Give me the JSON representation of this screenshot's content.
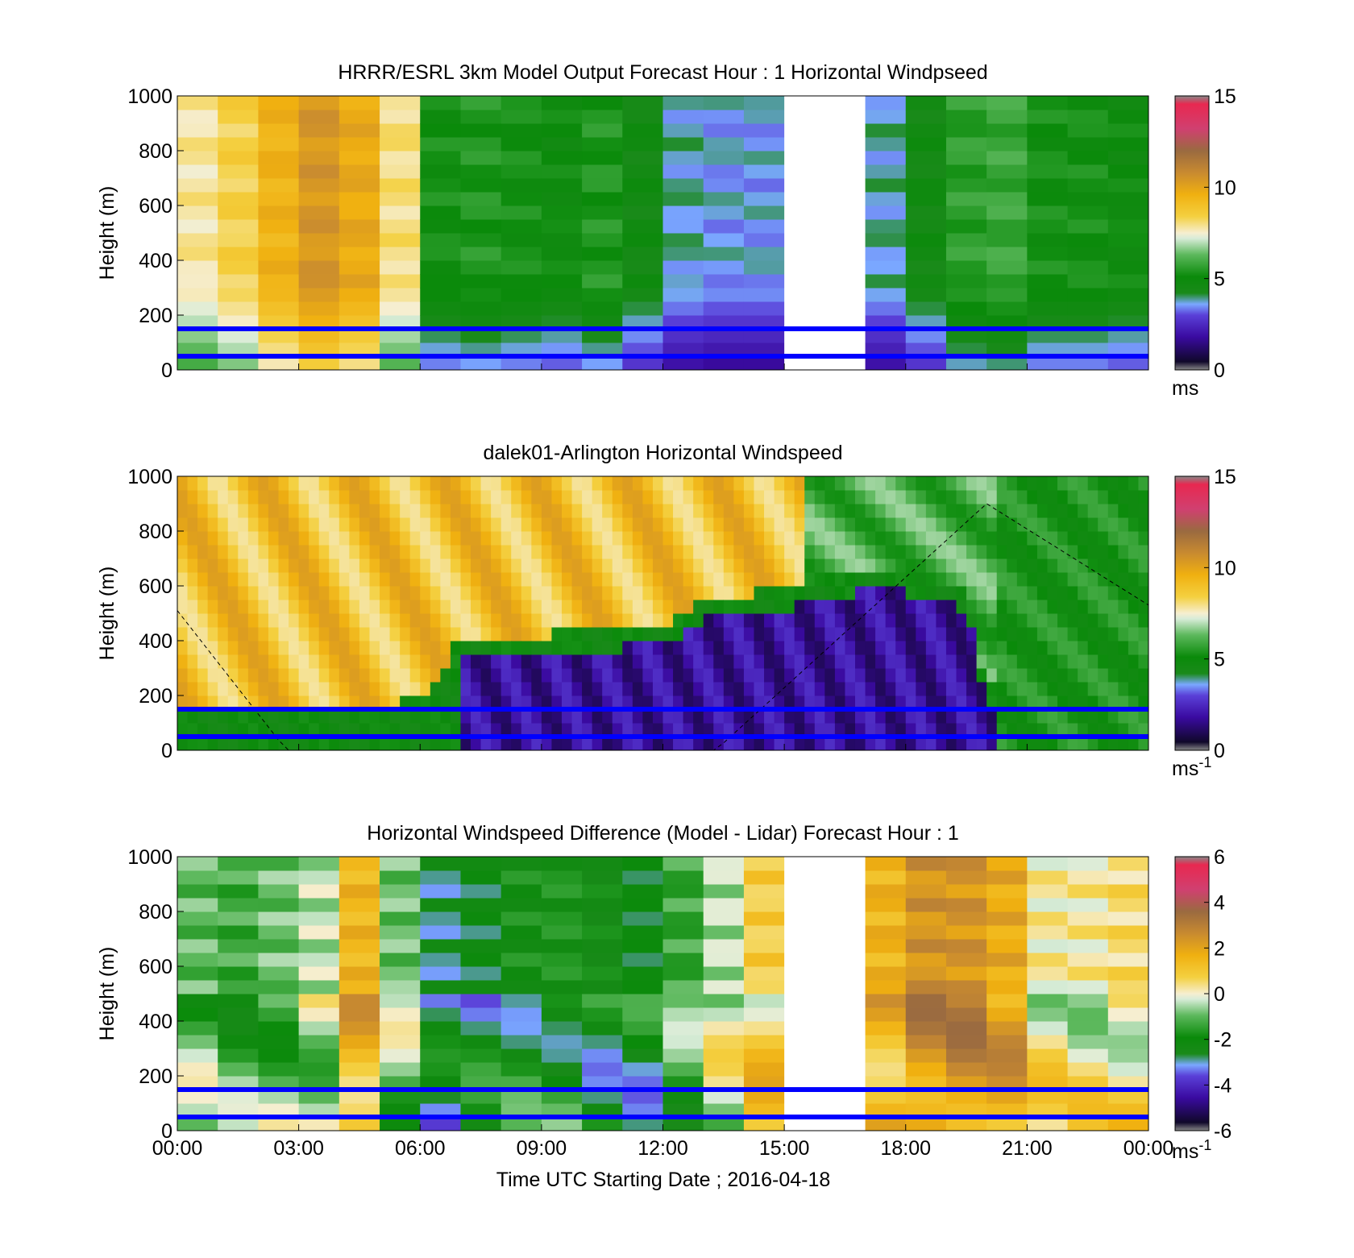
{
  "figure": {
    "xlabel": "Time UTC  Starting Date ; 2016-04-18",
    "time_ticks": [
      "00:00",
      "03:00",
      "06:00",
      "09:00",
      "12:00",
      "15:00",
      "18:00",
      "21:00",
      "00:00"
    ]
  },
  "colors": {
    "lidar_height_lines": "#0000ff",
    "no_data": "#ffffff"
  },
  "chart_data": [
    {
      "type": "heatmap",
      "title": "HRRR/ESRL 3km Model Output   Forecast Hour : 1 Horizontal Windpseed",
      "xlabel": "",
      "ylabel": "Height (m)",
      "ylim": [
        0,
        1000
      ],
      "yticks": [
        "0",
        "200",
        "400",
        "600",
        "800",
        "1000"
      ],
      "xlim_hours": [
        0,
        24
      ],
      "colorbar": {
        "ticks": [
          "0",
          "5",
          "10",
          "15"
        ],
        "range": [
          0,
          15
        ],
        "units": "ms"
      },
      "height_lines_m": [
        150,
        50
      ],
      "no_data_hours": [
        [
          15,
          17
        ]
      ],
      "column_hours": [
        0,
        1,
        2,
        3,
        4,
        5,
        6,
        7,
        8,
        9,
        10,
        11,
        12,
        13,
        14,
        15,
        16,
        17,
        18,
        19,
        20,
        21,
        22,
        23
      ],
      "column_mean_speed": [
        7.8,
        8.4,
        9.5,
        10.4,
        9.8,
        8.0,
        5.2,
        5.4,
        5.2,
        5.0,
        5.4,
        4.6,
        3.8,
        3.6,
        3.6,
        null,
        null,
        3.8,
        4.6,
        5.6,
        5.8,
        5.2,
        5.2,
        5.0
      ]
    },
    {
      "type": "heatmap",
      "title": "dalek01-Arlington  Horizontal Windspeed",
      "xlabel": "",
      "ylabel": "Height (m)",
      "ylim": [
        0,
        1000
      ],
      "yticks": [
        "0",
        "200",
        "400",
        "600",
        "800",
        "1000"
      ],
      "xlim_hours": [
        0,
        24
      ],
      "colorbar": {
        "ticks": [
          "0",
          "5",
          "10",
          "15"
        ],
        "range": [
          0,
          15
        ],
        "units": "ms-1"
      },
      "height_lines_m": [
        150,
        50
      ],
      "low_wind_top_m": [
        {
          "hour": 2.0,
          "height": 100
        },
        {
          "hour": 6.0,
          "height": 150
        },
        {
          "hour": 7.0,
          "height": 380
        },
        {
          "hour": 10.0,
          "height": 400
        },
        {
          "hour": 12.0,
          "height": 430
        },
        {
          "hour": 13.0,
          "height": 520
        },
        {
          "hour": 15.0,
          "height": 560
        },
        {
          "hour": 17.5,
          "height": 640
        },
        {
          "hour": 19.5,
          "height": 560
        },
        {
          "hour": 20.0,
          "height": 200
        }
      ],
      "dashed_curve": [
        {
          "hour": 0.0,
          "height": 510
        },
        {
          "hour": 2.7,
          "height": 0
        },
        {
          "hour": 13.3,
          "height": 0
        },
        {
          "hour": 20.0,
          "height": 900
        },
        {
          "hour": 24.0,
          "height": 530
        }
      ]
    },
    {
      "type": "heatmap",
      "title": "Horizontal Windspeed Difference (Model - Lidar) Forecast Hour : 1",
      "xlabel": "Time UTC  Starting Date ; 2016-04-18",
      "ylabel": "Height (m)",
      "ylim": [
        0,
        1000
      ],
      "yticks": [
        "0",
        "200",
        "400",
        "600",
        "800",
        "1000"
      ],
      "xlim_hours": [
        0,
        24
      ],
      "colorbar": {
        "ticks": [
          "-6",
          "-4",
          "-2",
          "0",
          "2",
          "4",
          "6"
        ],
        "range": [
          -6,
          6
        ],
        "units": "ms-1"
      },
      "height_lines_m": [
        150,
        50
      ],
      "no_data_hours": [
        [
          15,
          17
        ]
      ],
      "column_hours": [
        0,
        1,
        2,
        3,
        4,
        5,
        6,
        7,
        8,
        9,
        10,
        11,
        12,
        13,
        14,
        15,
        16,
        17,
        18,
        19,
        20,
        21,
        22,
        23
      ],
      "column_mean_diff": [
        -1.0,
        -1.3,
        -0.9,
        -0.4,
        1.5,
        -0.9,
        -2.8,
        -2.4,
        -2.0,
        -1.8,
        -2.2,
        -2.3,
        -1.4,
        -0.4,
        0.8,
        null,
        null,
        1.6,
        2.4,
        2.4,
        1.8,
        0.2,
        0.2,
        0.5
      ]
    }
  ]
}
